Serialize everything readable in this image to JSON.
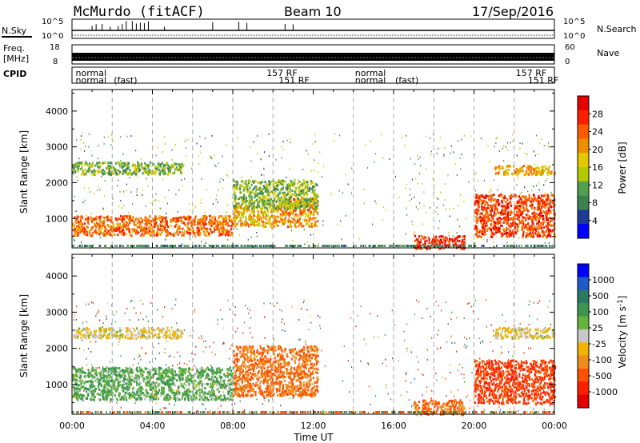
{
  "header": {
    "station": "McMurdo (fitACF)",
    "beam": "Beam 10",
    "date": "17/Sep/2016"
  },
  "top_panels": {
    "left_labels": [
      "N.Sky",
      "Freq.",
      "[MHz]",
      "CPID"
    ],
    "right_labels": [
      "N.Search",
      "Nave"
    ],
    "nsky_ticks": [
      "10^5",
      "10^0"
    ],
    "nsearch_ticks": [
      "10^5",
      "10^0"
    ],
    "freq_ticks": [
      "18",
      "8"
    ],
    "nave_ticks": [
      "60",
      "0"
    ],
    "cpid_text": [
      {
        "text": "normal",
        "row": 1
      },
      {
        "text": "normal",
        "row": 2
      },
      {
        "text": "(fast)",
        "row": 2
      },
      {
        "text": "157 RF",
        "row": 1
      },
      {
        "text": "151 RF",
        "row": 2
      },
      {
        "text": "normal",
        "row": 1
      },
      {
        "text": "normal",
        "row": 2
      },
      {
        "text": "(fast)",
        "row": 2
      },
      {
        "text": "157 RF",
        "row": 1
      },
      {
        "text": "151 RF",
        "row": 2
      }
    ]
  },
  "colors": {
    "power_scale": [
      "#0000ff",
      "#1e3c96",
      "#3c8250",
      "#50a050",
      "#b4c800",
      "#e6c800",
      "#f08c00",
      "#ff5a00",
      "#ff1e00",
      "#e60000"
    ],
    "velocity_scale": [
      "#0000ff",
      "#1e5ac8",
      "#2a7a64",
      "#3c9650",
      "#64b43c",
      "#c8c8c8",
      "#f0b400",
      "#f08c1e",
      "#ff5000",
      "#ff1e00",
      "#e60000"
    ]
  },
  "chart_data": [
    {
      "type": "heatmap",
      "panel": "power",
      "ylabel": "Slant Range [km]",
      "xlabel": "Time UT",
      "ylim": [
        180,
        4600
      ],
      "xlim": [
        0,
        24
      ],
      "yticks": [
        1000,
        2000,
        3000,
        4000
      ],
      "xticks": [
        "00:00",
        "04:00",
        "08:00",
        "12:00",
        "16:00",
        "20:00",
        "00:00"
      ],
      "colorbar_label": "Power [dB]",
      "colorbar_ticks": [
        4,
        8,
        12,
        16,
        20,
        24,
        28
      ],
      "colorbar_range": [
        0,
        30
      ],
      "regions": [
        {
          "t0": 0.0,
          "t1": 8.0,
          "r0": 550,
          "r1": 1100,
          "value": 22
        },
        {
          "t0": 8.0,
          "t1": 10.5,
          "r0": 800,
          "r1": 1400,
          "value": 18
        },
        {
          "t0": 10.5,
          "t1": 12.2,
          "r0": 800,
          "r1": 1600,
          "value": 20
        },
        {
          "t0": 0.0,
          "t1": 5.5,
          "r0": 2250,
          "r1": 2600,
          "value": 12
        },
        {
          "t0": 8.0,
          "t1": 12.2,
          "r0": 1300,
          "r1": 2100,
          "value": 12
        },
        {
          "t0": 17.0,
          "t1": 19.5,
          "r0": 180,
          "r1": 550,
          "value": 26
        },
        {
          "t0": 20.0,
          "t1": 24.0,
          "r0": 500,
          "r1": 1700,
          "value": 24
        },
        {
          "t0": 21.0,
          "t1": 24.0,
          "r0": 2250,
          "r1": 2500,
          "value": 18
        }
      ]
    },
    {
      "type": "heatmap",
      "panel": "velocity",
      "ylabel": "Slant Range [km]",
      "xlabel": "Time UT",
      "ylim": [
        180,
        4600
      ],
      "xlim": [
        0,
        24
      ],
      "yticks": [
        1000,
        2000,
        3000,
        4000
      ],
      "xticks": [
        "00:00",
        "04:00",
        "08:00",
        "12:00",
        "16:00",
        "20:00",
        "00:00"
      ],
      "colorbar_label": "Velocity [m s^-1]",
      "colorbar_ticks": [
        1000,
        500,
        100,
        25,
        -25,
        -100,
        -500,
        -1000
      ],
      "regions": [
        {
          "t0": 0.0,
          "t1": 8.0,
          "r0": 600,
          "r1": 1500,
          "value": 100
        },
        {
          "t0": 8.0,
          "t1": 12.2,
          "r0": 700,
          "r1": 2100,
          "value": -100
        },
        {
          "t0": 0.0,
          "t1": 5.5,
          "r0": 2300,
          "r1": 2600,
          "value": 25
        },
        {
          "t0": 17.0,
          "t1": 19.5,
          "r0": 180,
          "r1": 600,
          "value": -100
        },
        {
          "t0": 20.0,
          "t1": 24.0,
          "r0": 500,
          "r1": 1700,
          "value": -300
        },
        {
          "t0": 21.0,
          "t1": 24.0,
          "r0": 2300,
          "r1": 2600,
          "value": 25
        }
      ]
    }
  ]
}
